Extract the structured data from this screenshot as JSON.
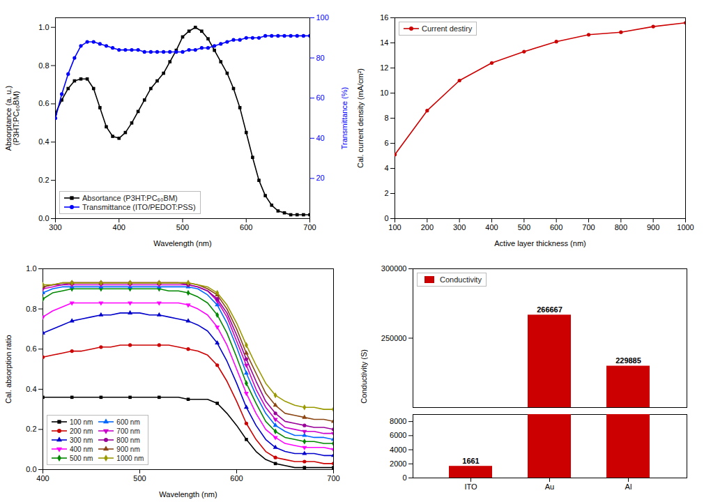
{
  "chart_data": [
    {
      "type": "line",
      "xlabel": "Wavelength (nm)",
      "ylabel": "Absorptance (a. u.)\n(P3HT:PC₆₀BM)",
      "y2label": "Transmittance (%)",
      "x": [
        300,
        310,
        320,
        330,
        340,
        350,
        360,
        370,
        380,
        390,
        400,
        410,
        420,
        430,
        440,
        450,
        460,
        470,
        480,
        490,
        500,
        510,
        520,
        530,
        540,
        550,
        560,
        570,
        580,
        590,
        600,
        610,
        620,
        630,
        640,
        650,
        660,
        670,
        680,
        690,
        700
      ],
      "series": [
        {
          "name": "Absortance (P3HT:PC₆₀BM)",
          "color": "#000000",
          "marker": "square",
          "values": [
            0.55,
            0.62,
            0.68,
            0.72,
            0.73,
            0.73,
            0.68,
            0.58,
            0.48,
            0.43,
            0.42,
            0.45,
            0.5,
            0.56,
            0.62,
            0.68,
            0.72,
            0.76,
            0.82,
            0.88,
            0.95,
            0.98,
            1.0,
            0.98,
            0.94,
            0.88,
            0.82,
            0.76,
            0.68,
            0.58,
            0.45,
            0.32,
            0.2,
            0.12,
            0.07,
            0.04,
            0.03,
            0.02,
            0.02,
            0.02,
            0.02
          ]
        },
        {
          "name": "Transmittance (ITO/PEDOT:PSS)",
          "color": "#0000ff",
          "marker": "circle",
          "axis": "y2",
          "values": [
            50,
            62,
            72,
            80,
            86,
            88,
            88,
            87,
            86,
            85,
            84,
            84,
            84,
            84,
            83,
            83,
            83,
            83,
            83,
            83,
            83,
            84,
            84,
            85,
            85,
            86,
            87,
            88,
            89,
            89,
            90,
            90,
            90,
            91,
            91,
            91,
            91,
            91,
            91,
            91,
            91
          ]
        }
      ],
      "xlim": [
        300,
        700
      ],
      "xticks": [
        300,
        400,
        500,
        600,
        700
      ],
      "ylim": [
        0,
        1.05
      ],
      "yticks": [
        {
          "value": 0,
          "label": "0.0"
        },
        0.2,
        0.4,
        0.6,
        0.8,
        {
          "value": 1,
          "label": "1.0"
        }
      ],
      "y2lim": [
        0,
        100
      ],
      "y2ticks": [
        20,
        40,
        60,
        80,
        100
      ],
      "legend": "lower left"
    },
    {
      "type": "line",
      "xlabel": "Active layer thickness (nm)",
      "ylabel": "Cal. current density (mA/cm²)",
      "x": [
        100,
        200,
        300,
        400,
        500,
        600,
        700,
        800,
        900,
        1000
      ],
      "series": [
        {
          "name": "Current destiry",
          "color": "#cc0000",
          "marker": "circle",
          "values": [
            5.1,
            8.6,
            11.0,
            12.4,
            13.3,
            14.1,
            14.65,
            14.85,
            15.3,
            15.6
          ]
        }
      ],
      "xlim": [
        100,
        1000
      ],
      "xticks": [
        100,
        200,
        300,
        400,
        500,
        600,
        700,
        800,
        900,
        1000
      ],
      "ylim": [
        0,
        16
      ],
      "yticks": [
        0,
        2,
        4,
        6,
        8,
        10,
        12,
        14,
        16
      ],
      "legend": "upper left"
    },
    {
      "type": "line",
      "xlabel": "Wavelength (nm)",
      "ylabel": "Cal. absorption ratio",
      "x": [
        400,
        410,
        420,
        430,
        440,
        450,
        460,
        470,
        480,
        490,
        500,
        510,
        520,
        530,
        540,
        550,
        560,
        570,
        580,
        590,
        600,
        610,
        620,
        630,
        640,
        650,
        660,
        670,
        680,
        690,
        700
      ],
      "series": [
        {
          "name": "100 nm",
          "color": "#000000",
          "marker": "square",
          "values": [
            0.36,
            0.36,
            0.36,
            0.36,
            0.36,
            0.36,
            0.36,
            0.36,
            0.36,
            0.36,
            0.36,
            0.36,
            0.36,
            0.36,
            0.36,
            0.35,
            0.35,
            0.35,
            0.33,
            0.28,
            0.22,
            0.15,
            0.09,
            0.05,
            0.03,
            0.02,
            0.01,
            0.01,
            0.01,
            0.01,
            0.01
          ]
        },
        {
          "name": "200 nm",
          "color": "#cc0000",
          "marker": "circle",
          "values": [
            0.56,
            0.57,
            0.58,
            0.59,
            0.59,
            0.6,
            0.61,
            0.61,
            0.62,
            0.62,
            0.62,
            0.62,
            0.62,
            0.62,
            0.61,
            0.6,
            0.59,
            0.57,
            0.52,
            0.44,
            0.34,
            0.23,
            0.15,
            0.09,
            0.06,
            0.05,
            0.04,
            0.04,
            0.04,
            0.03,
            0.03
          ]
        },
        {
          "name": "300 nm",
          "color": "#0000cc",
          "marker": "triangle-up",
          "values": [
            0.68,
            0.7,
            0.72,
            0.74,
            0.75,
            0.76,
            0.77,
            0.77,
            0.78,
            0.78,
            0.78,
            0.77,
            0.77,
            0.76,
            0.75,
            0.74,
            0.72,
            0.69,
            0.63,
            0.54,
            0.43,
            0.31,
            0.22,
            0.15,
            0.11,
            0.09,
            0.08,
            0.08,
            0.08,
            0.07,
            0.07
          ]
        },
        {
          "name": "400 nm",
          "color": "#ff00ff",
          "marker": "triangle-down",
          "values": [
            0.76,
            0.79,
            0.81,
            0.83,
            0.83,
            0.83,
            0.83,
            0.83,
            0.83,
            0.83,
            0.83,
            0.83,
            0.83,
            0.83,
            0.83,
            0.82,
            0.8,
            0.77,
            0.71,
            0.62,
            0.5,
            0.38,
            0.28,
            0.2,
            0.16,
            0.13,
            0.12,
            0.11,
            0.11,
            0.11,
            0.1
          ]
        },
        {
          "name": "500 nm",
          "color": "#008800",
          "marker": "diamond",
          "values": [
            0.85,
            0.88,
            0.89,
            0.9,
            0.9,
            0.9,
            0.9,
            0.9,
            0.9,
            0.9,
            0.9,
            0.9,
            0.9,
            0.89,
            0.89,
            0.88,
            0.86,
            0.83,
            0.77,
            0.68,
            0.56,
            0.43,
            0.33,
            0.24,
            0.19,
            0.16,
            0.15,
            0.14,
            0.14,
            0.13,
            0.13
          ]
        },
        {
          "name": "600 nm",
          "color": "#0066ff",
          "marker": "triangle-up",
          "values": [
            0.88,
            0.9,
            0.91,
            0.91,
            0.91,
            0.91,
            0.91,
            0.91,
            0.91,
            0.91,
            0.91,
            0.91,
            0.91,
            0.91,
            0.91,
            0.91,
            0.9,
            0.87,
            0.82,
            0.73,
            0.61,
            0.48,
            0.37,
            0.28,
            0.22,
            0.19,
            0.17,
            0.17,
            0.16,
            0.16,
            0.15
          ]
        },
        {
          "name": "700 nm",
          "color": "#cc00cc",
          "marker": "triangle-down",
          "values": [
            0.9,
            0.91,
            0.92,
            0.92,
            0.92,
            0.92,
            0.92,
            0.92,
            0.92,
            0.92,
            0.92,
            0.92,
            0.92,
            0.92,
            0.92,
            0.92,
            0.91,
            0.89,
            0.84,
            0.76,
            0.64,
            0.52,
            0.4,
            0.31,
            0.25,
            0.21,
            0.2,
            0.19,
            0.19,
            0.18,
            0.18
          ]
        },
        {
          "name": "800 nm",
          "color": "#990099",
          "marker": "circle",
          "values": [
            0.91,
            0.92,
            0.92,
            0.93,
            0.93,
            0.93,
            0.93,
            0.93,
            0.93,
            0.93,
            0.93,
            0.93,
            0.93,
            0.93,
            0.93,
            0.92,
            0.91,
            0.89,
            0.85,
            0.78,
            0.67,
            0.55,
            0.44,
            0.34,
            0.28,
            0.24,
            0.23,
            0.22,
            0.21,
            0.21,
            0.2
          ]
        },
        {
          "name": "900 nm",
          "color": "#8B4513",
          "marker": "triangle-up",
          "values": [
            0.91,
            0.92,
            0.93,
            0.93,
            0.93,
            0.93,
            0.93,
            0.93,
            0.93,
            0.93,
            0.93,
            0.93,
            0.93,
            0.93,
            0.93,
            0.93,
            0.92,
            0.9,
            0.87,
            0.8,
            0.7,
            0.58,
            0.48,
            0.38,
            0.32,
            0.28,
            0.27,
            0.26,
            0.25,
            0.25,
            0.24
          ]
        },
        {
          "name": "1000 nm",
          "color": "#999900",
          "marker": "diamond",
          "values": [
            0.92,
            0.92,
            0.93,
            0.93,
            0.93,
            0.93,
            0.93,
            0.93,
            0.93,
            0.93,
            0.93,
            0.93,
            0.93,
            0.93,
            0.93,
            0.93,
            0.92,
            0.91,
            0.88,
            0.82,
            0.73,
            0.62,
            0.52,
            0.43,
            0.37,
            0.34,
            0.32,
            0.31,
            0.31,
            0.3,
            0.3
          ]
        }
      ],
      "xlim": [
        400,
        700
      ],
      "xticks": [
        400,
        500,
        600,
        700
      ],
      "ylim": [
        0,
        1
      ],
      "yticks": [
        {
          "value": 0,
          "label": "0.0"
        },
        0.2,
        0.4,
        0.6,
        0.8,
        {
          "value": 1,
          "label": "1.0"
        }
      ],
      "legend": "lower left"
    },
    {
      "type": "bar",
      "ylabel": "Conductivity (S)",
      "categories": [
        "ITO",
        "Au",
        "Al"
      ],
      "series": [
        {
          "name": "Conductivity",
          "color": "#cc0000",
          "values": [
            1661,
            266667,
            229885
          ]
        }
      ],
      "ylim": [
        [
          200000,
          300000
        ],
        [
          0,
          9000
        ]
      ],
      "yticks": [
        [
          250000,
          300000
        ],
        [
          0,
          2000,
          4000,
          6000,
          8000
        ]
      ],
      "data_labels": true,
      "legend": "upper left"
    }
  ]
}
